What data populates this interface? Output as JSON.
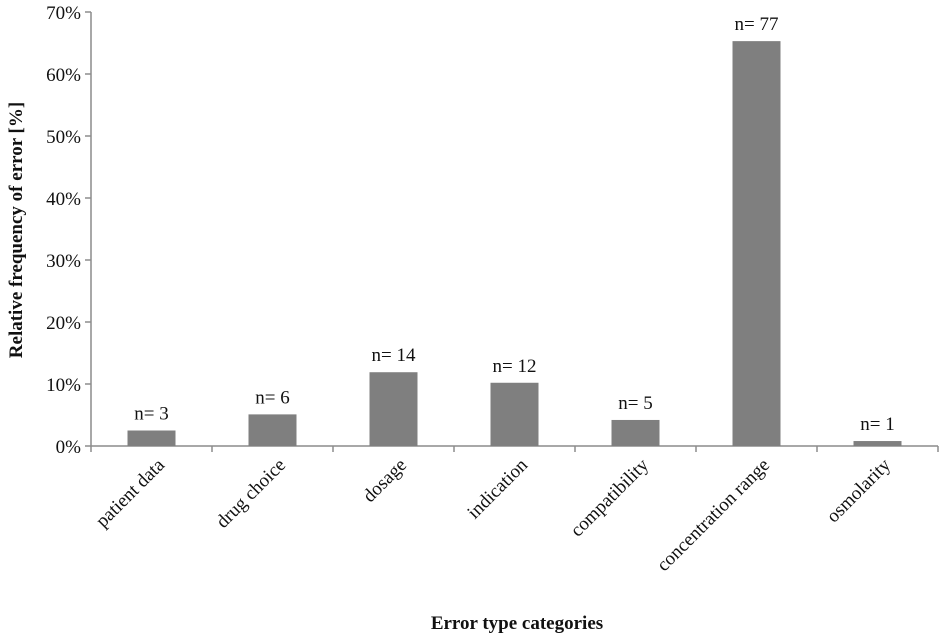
{
  "chart_data": {
    "type": "bar",
    "categories": [
      "patient data",
      "drug choice",
      "dosage",
      "indication",
      "compatibility",
      "concentration range",
      "osmolarity"
    ],
    "values": [
      2.5,
      5.1,
      11.9,
      10.2,
      4.2,
      65.3,
      0.8
    ],
    "data_labels": [
      "n= 3",
      "n= 6",
      "n= 14",
      "n= 12",
      "n= 5",
      "n= 77",
      "n= 1"
    ],
    "xlabel": "Error type categories",
    "ylabel": "Relative frequency of error [%]",
    "ylim": [
      0,
      70
    ],
    "yticks": [
      "0%",
      "10%",
      "20%",
      "30%",
      "40%",
      "50%",
      "60%",
      "70%"
    ],
    "grid": false,
    "legend": "none",
    "bar_color": "#7f7f7f",
    "axis_color": "#8c8c8c"
  }
}
